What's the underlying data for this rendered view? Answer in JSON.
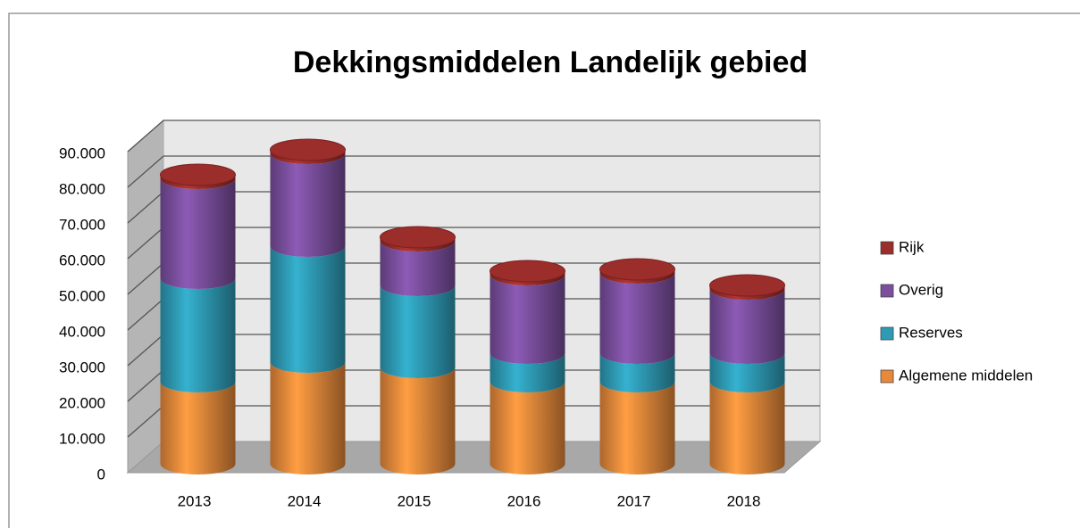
{
  "chart_data": {
    "type": "bar3d_stacked",
    "title": "Dekkingsmiddelen Landelijk gebied",
    "categories": [
      "2013",
      "2014",
      "2015",
      "2016",
      "2017",
      "2018"
    ],
    "series": [
      {
        "name": "Algemene middelen",
        "color": "#e8893a",
        "values": [
          23000,
          28500,
          27000,
          23000,
          23000,
          23000
        ]
      },
      {
        "name": "Reserves",
        "color": "#2e9bb5",
        "values": [
          29000,
          32500,
          23000,
          8000,
          8000,
          8000
        ]
      },
      {
        "name": "Overig",
        "color": "#7b4f9e",
        "values": [
          28000,
          26000,
          12500,
          22000,
          22500,
          18000
        ]
      },
      {
        "name": "Rijk",
        "color": "#9b2d2a",
        "values": [
          1000,
          1000,
          1000,
          1000,
          1000,
          1000
        ]
      }
    ],
    "ylim": [
      0,
      90000
    ],
    "yticks": [
      0,
      {
        "value": 10000,
        "label": "10.000"
      },
      {
        "value": 20000,
        "label": "20.000"
      },
      {
        "value": 30000,
        "label": "30.000"
      },
      {
        "value": 40000,
        "label": "40.000"
      },
      {
        "value": 50000,
        "label": "50.000"
      },
      {
        "value": 60000,
        "label": "60.000"
      },
      {
        "value": 70000,
        "label": "70.000"
      },
      {
        "value": 80000,
        "label": "80.000"
      },
      {
        "value": 90000,
        "label": "90.000"
      }
    ],
    "grid": true,
    "legend": "right"
  }
}
